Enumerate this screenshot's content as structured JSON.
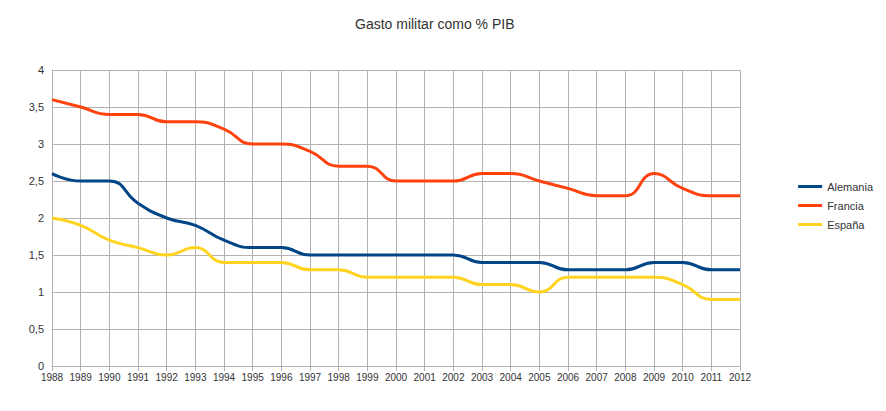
{
  "chart_data": {
    "type": "line",
    "title": "Gasto militar como % PIB",
    "categories": [
      "1988",
      "1989",
      "1990",
      "1991",
      "1992",
      "1993",
      "1994",
      "1995",
      "1996",
      "1997",
      "1998",
      "1999",
      "2000",
      "2001",
      "2002",
      "2003",
      "2004",
      "2005",
      "2006",
      "2007",
      "2008",
      "2009",
      "2010",
      "2011",
      "2012"
    ],
    "series": [
      {
        "name": "Alemania",
        "color": "#004586",
        "values": [
          2.6,
          2.5,
          2.5,
          2.2,
          2.0,
          1.9,
          1.7,
          1.6,
          1.6,
          1.5,
          1.5,
          1.5,
          1.5,
          1.5,
          1.5,
          1.4,
          1.4,
          1.4,
          1.3,
          1.3,
          1.3,
          1.4,
          1.4,
          1.3,
          1.3
        ]
      },
      {
        "name": "Francia",
        "color": "#ff420e",
        "values": [
          3.6,
          3.5,
          3.4,
          3.4,
          3.3,
          3.3,
          3.2,
          3.0,
          3.0,
          2.9,
          2.7,
          2.7,
          2.5,
          2.5,
          2.5,
          2.6,
          2.6,
          2.5,
          2.4,
          2.3,
          2.3,
          2.6,
          2.4,
          2.3,
          2.3
        ]
      },
      {
        "name": "España",
        "color": "#ffd320",
        "values": [
          2.0,
          1.9,
          1.7,
          1.6,
          1.5,
          1.6,
          1.4,
          1.4,
          1.4,
          1.3,
          1.3,
          1.2,
          1.2,
          1.2,
          1.2,
          1.1,
          1.1,
          1.0,
          1.2,
          1.2,
          1.2,
          1.2,
          1.1,
          0.9,
          0.9
        ]
      }
    ],
    "ylim": [
      0,
      4
    ],
    "yticks": [
      0,
      {
        "value": 0.5,
        "label": "0,5"
      },
      1,
      {
        "value": 1.5,
        "label": "1,5"
      },
      2,
      {
        "value": 2.5,
        "label": "2,5"
      },
      3,
      {
        "value": 3.5,
        "label": "3,5"
      },
      4
    ],
    "grid": true,
    "legend": "right"
  }
}
